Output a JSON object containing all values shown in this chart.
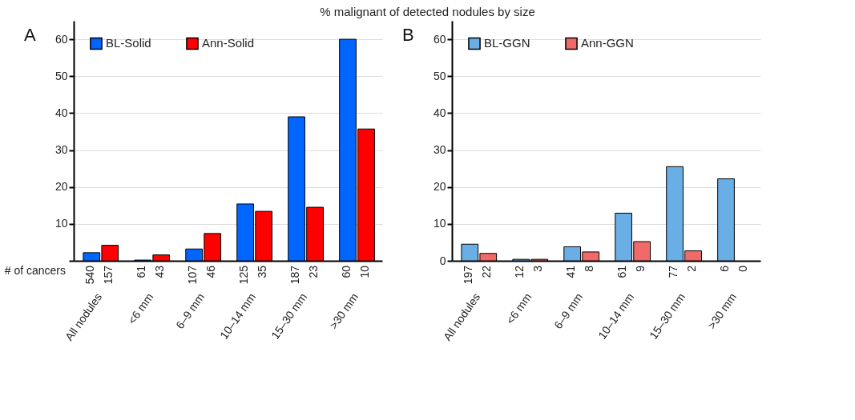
{
  "chart_data": [
    {
      "type": "bar",
      "title": "% malignant of detected nodules by size",
      "categories": [
        "All nodules",
        "<6 mm",
        "6–9 mm",
        "10–14 mm",
        "15–30 mm",
        ">30 mm"
      ],
      "series": [
        {
          "name": "BL-Solid",
          "color": "#0066ff",
          "values": [
            2.2,
            0.2,
            3.2,
            15.4,
            39,
            60
          ]
        },
        {
          "name": "Ann-Solid",
          "color": "#ff0000",
          "values": [
            4.2,
            1.6,
            7.4,
            13.4,
            14.5,
            35.7
          ]
        }
      ],
      "ylim": [
        0,
        65
      ],
      "yticks": [
        {
          "value": 0,
          "label": null
        },
        10,
        20,
        30,
        40,
        50,
        60
      ],
      "grid": "y",
      "legend": "top left",
      "annotations": [
        "A",
        "# of cancers",
        "540",
        "157",
        "61",
        "43",
        "107",
        "46",
        "125",
        "35",
        "187",
        "23",
        "60",
        "10"
      ]
    },
    {
      "type": "bar",
      "categories": [
        "All nodules",
        "<6 mm",
        "6–9 mm",
        "10–14 mm",
        "15–30 mm",
        ">30 mm"
      ],
      "series": [
        {
          "name": "BL-GGN",
          "color": "#6aaee6",
          "values": [
            4.5,
            0.4,
            3.8,
            12.9,
            25.5,
            22.2
          ]
        },
        {
          "name": "Ann-GGN",
          "color": "#f06a6a",
          "values": [
            2.0,
            0.4,
            2.4,
            5.2,
            2.7,
            null
          ]
        }
      ],
      "ylim": [
        0,
        65
      ],
      "yticks": [
        0,
        10,
        20,
        30,
        40,
        50,
        60
      ],
      "grid": "y",
      "legend": "top left",
      "annotations": [
        "B",
        "197",
        "22",
        "12",
        "3",
        "41",
        "8",
        "61",
        "9",
        "77",
        "2",
        "6",
        "0"
      ]
    }
  ]
}
